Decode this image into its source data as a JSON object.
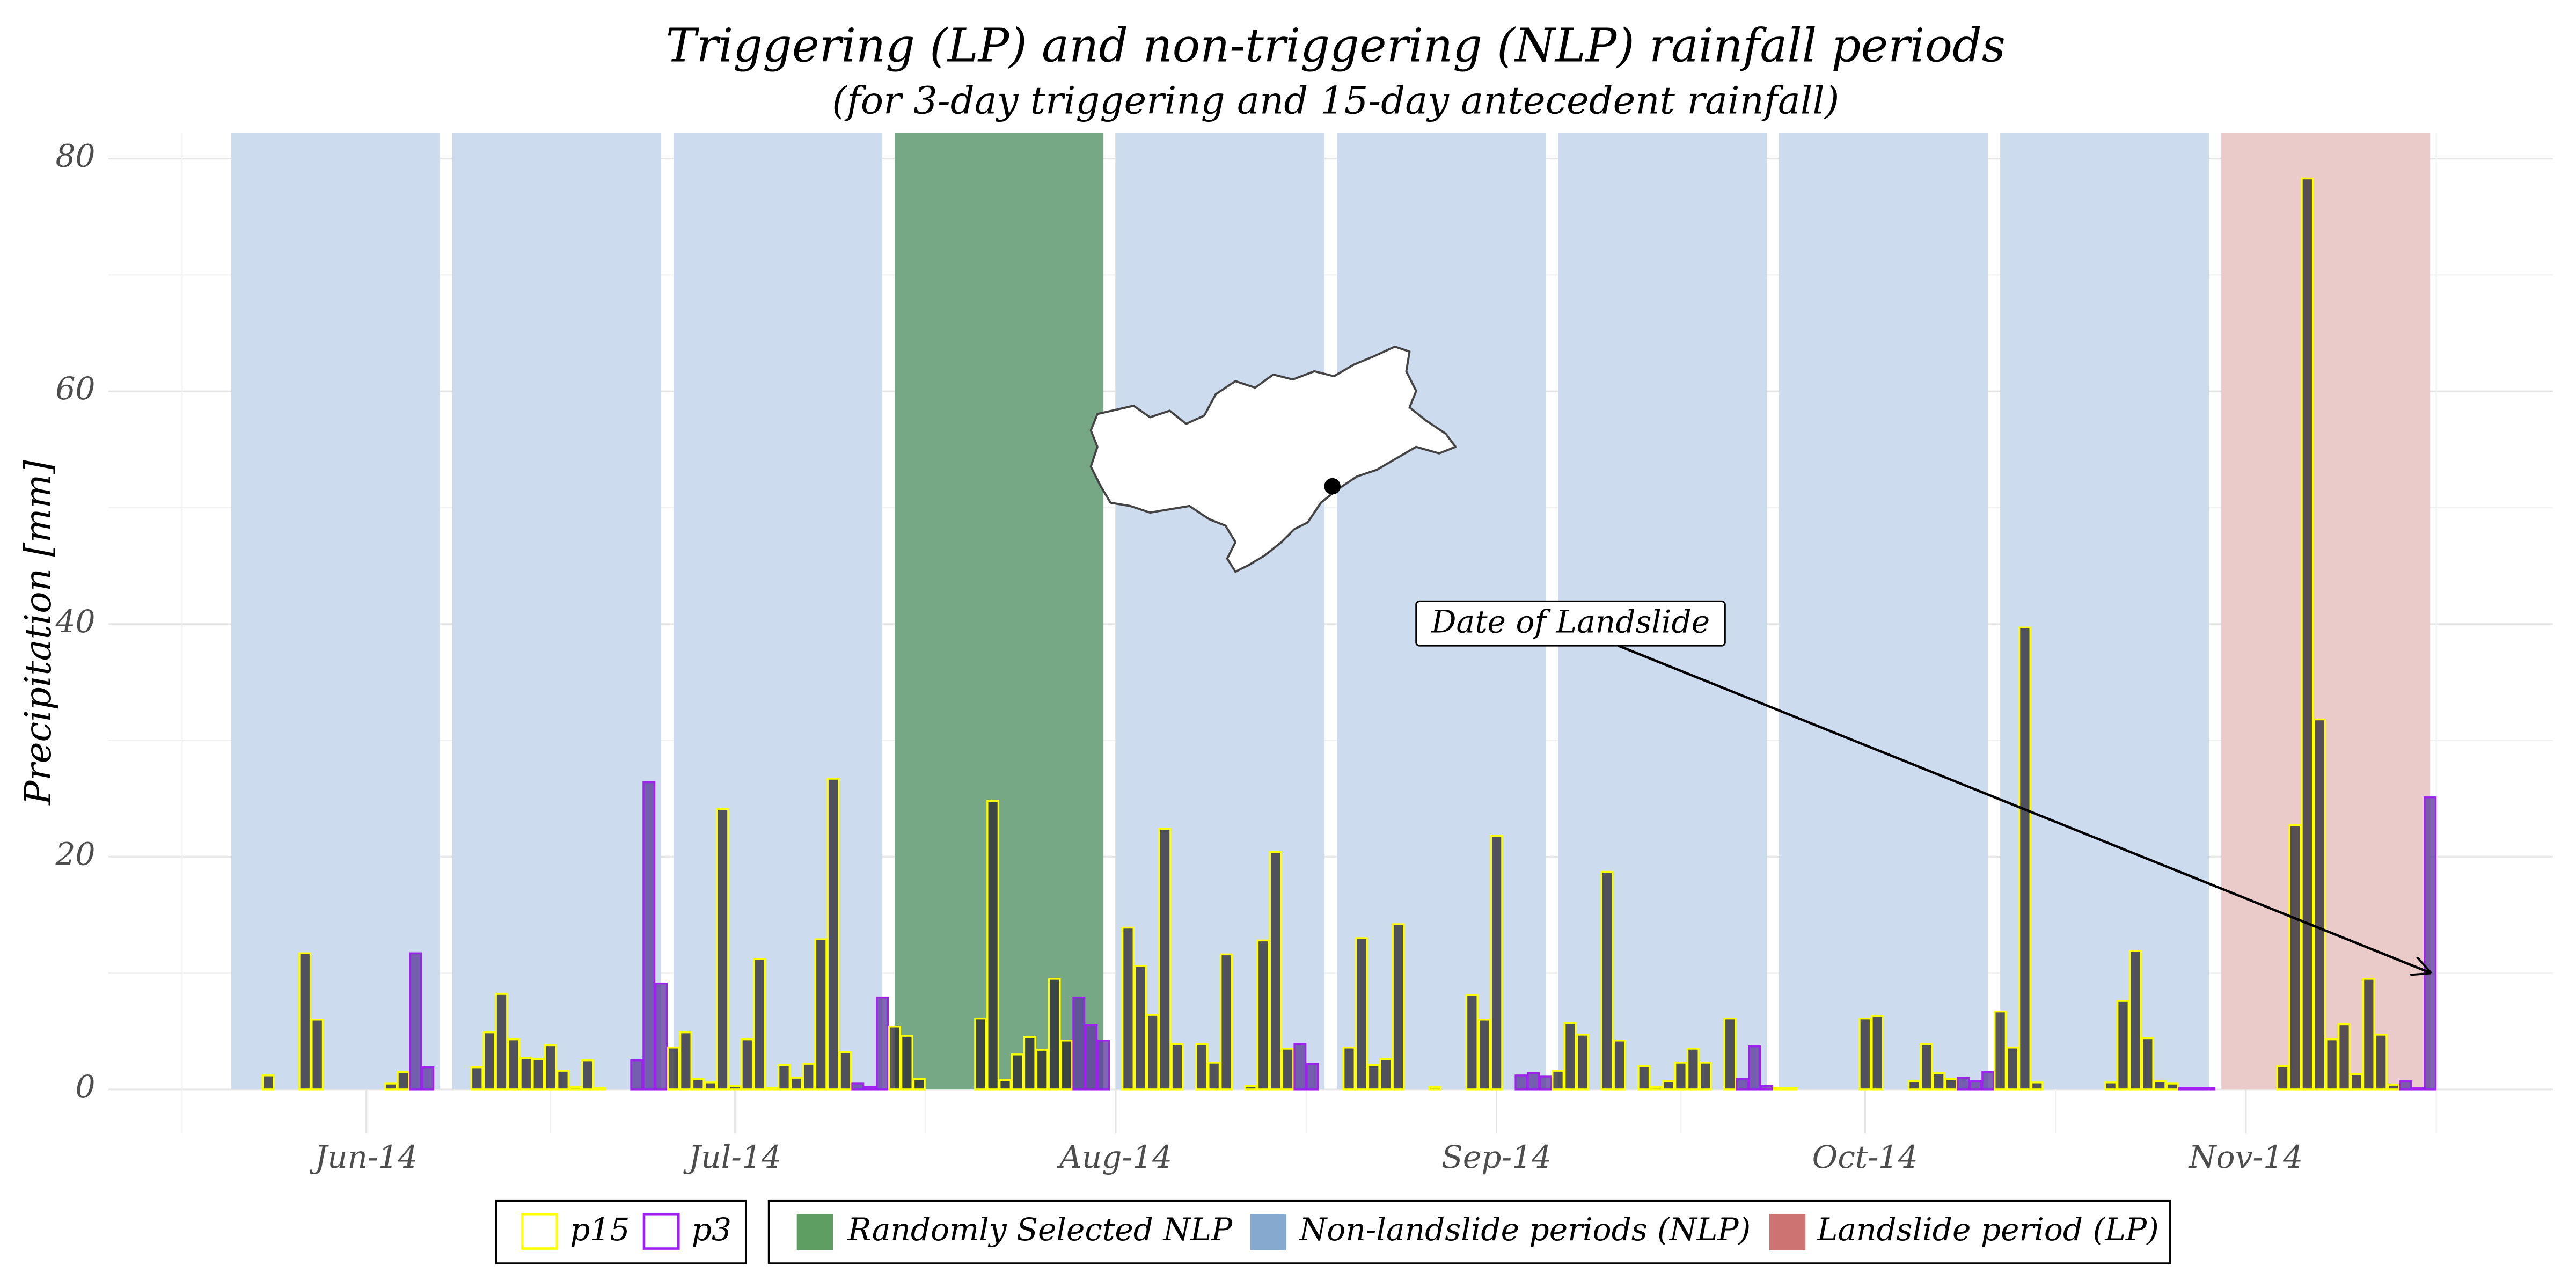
{
  "chart_data": {
    "type": "bar",
    "title": "Triggering (LP) and non-triggering (NLP) rainfall periods",
    "subtitle": "(for 3-day triggering and 15-day antecedent rainfall)",
    "y_label": "Precipitation [mm]",
    "annotation": "Date of Landslide",
    "xlim": [
      "2014-05-11",
      "2014-11-26"
    ],
    "xticks": [
      {
        "value": "2014-06-01",
        "label": "Jun-14"
      },
      {
        "value": "2014-07-01",
        "label": "Jul-14"
      },
      {
        "value": "2014-08-01",
        "label": "Aug-14"
      },
      {
        "value": "2014-09-01",
        "label": "Sep-14"
      },
      {
        "value": "2014-10-01",
        "label": "Oct-14"
      },
      {
        "value": "2014-11-01",
        "label": "Nov-14"
      }
    ],
    "ylim": [
      -3.8,
      82.2
    ],
    "yticks": [
      0,
      20,
      40,
      60,
      80
    ],
    "grid": true,
    "legend_bars": [
      {
        "name": "p15",
        "color": "#ffff00",
        "fill": "#2b2b33"
      },
      {
        "name": "p3",
        "color": "#a020f0",
        "fill": "#5b3c9e"
      }
    ],
    "legend_periods": [
      {
        "name": "Randomly Selected NLP",
        "color": "#5f9e63",
        "shade": "#76a886"
      },
      {
        "name": "Non-landslide periods (NLP)",
        "color": "#86a9cf",
        "shade": "#cddbee"
      },
      {
        "name": "Landslide period (LP)",
        "color": "#cd7372",
        "shade": "#ebcbca"
      }
    ],
    "periods": [
      {
        "kind": 1,
        "start": "2014-05-21",
        "p15": [
          0,
          0,
          0,
          1.2,
          0,
          0,
          11.7,
          6,
          0,
          0,
          0,
          0,
          0,
          0.5,
          1.5
        ],
        "p3": [
          11.7,
          1.9,
          0
        ]
      },
      {
        "kind": 1,
        "start": "2014-06-08",
        "p15": [
          0,
          0,
          1.9,
          4.9,
          8.2,
          4.3,
          2.7,
          2.6,
          3.8,
          1.6,
          0.2,
          2.5,
          0.1,
          0,
          0
        ],
        "p3": [
          2.5,
          26.4,
          9.1
        ]
      },
      {
        "kind": 1,
        "start": "2014-06-26",
        "p15": [
          3.6,
          4.9,
          0.9,
          0.6,
          24.1,
          0.3,
          4.3,
          11.2,
          0.1,
          2.1,
          1.0,
          2.2,
          12.9,
          26.7,
          3.2
        ],
        "p3": [
          0.5,
          0.2,
          7.9
        ]
      },
      {
        "kind": 0,
        "start": "2014-07-14",
        "p15": [
          5.4,
          4.6,
          0.9,
          0,
          0,
          0,
          0,
          6.1,
          24.8,
          0.8,
          3.0,
          4.5,
          3.4,
          9.5,
          4.2
        ],
        "p3": [
          7.9,
          5.5,
          4.2
        ]
      },
      {
        "kind": 1,
        "start": "2014-08-01",
        "p15": [
          0,
          13.9,
          10.6,
          6.4,
          22.4,
          3.9,
          0,
          3.9,
          2.3,
          11.6,
          0,
          0.3,
          12.8,
          20.4,
          3.5
        ],
        "p3": [
          3.9,
          2.2,
          0
        ]
      },
      {
        "kind": 1,
        "start": "2014-08-19",
        "p15": [
          0,
          3.6,
          13,
          2.1,
          2.6,
          14.2,
          0,
          0,
          0.2,
          0,
          0,
          8.1,
          6,
          21.8,
          0
        ],
        "p3": [
          1.2,
          1.4,
          1.1
        ]
      },
      {
        "kind": 1,
        "start": "2014-09-06",
        "p15": [
          1.6,
          5.7,
          4.7,
          0,
          18.7,
          4.2,
          0,
          2,
          0.2,
          0.7,
          2.3,
          3.5,
          2.3,
          0,
          6.1
        ],
        "p3": [
          0.9,
          3.7,
          0.3
        ]
      },
      {
        "kind": 1,
        "start": "2014-09-24",
        "p15": [
          0.1,
          0.1,
          0,
          0,
          0,
          0,
          0,
          6.1,
          6.3,
          0,
          0,
          0.7,
          3.9,
          1.4,
          0.9
        ],
        "p3": [
          1,
          0.7,
          1.5
        ]
      },
      {
        "kind": 1,
        "start": "2014-10-12",
        "p15": [
          6.7,
          3.6,
          39.7,
          0.6,
          0,
          0,
          0,
          0,
          0,
          0.6,
          7.6,
          11.9,
          4.4,
          0.7,
          0.5
        ],
        "p3": [
          0.1,
          0.1,
          0.1
        ]
      },
      {
        "kind": 2,
        "start": "2014-10-30",
        "p15": [
          0,
          0,
          0,
          0,
          0,
          2,
          22.7,
          78.3,
          31.8,
          4.3,
          5.6,
          1.3,
          9.5,
          4.7,
          0.4
        ],
        "p3": [
          0.7,
          0.1,
          25.1
        ]
      }
    ]
  }
}
